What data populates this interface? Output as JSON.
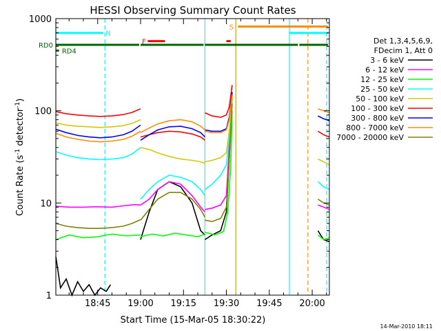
{
  "chart_data": {
    "type": "line",
    "title": "HESSI Observing Summary Count Rates",
    "xlabel": "Start Time (15-Mar-05 18:30:22)",
    "ylabel_parts": [
      "Count Rate (s",
      "-1",
      " detector",
      "-1",
      ")"
    ],
    "xlim_min": [
      30.37,
      126
    ],
    "ylim": [
      1,
      1000
    ],
    "log_y": true,
    "x_ticks": [
      {
        "v": 45,
        "label": "18:45"
      },
      {
        "v": 60,
        "label": "19:00"
      },
      {
        "v": 75,
        "label": "19:15"
      },
      {
        "v": 90,
        "label": "19:30"
      },
      {
        "v": 105,
        "label": "19:45"
      },
      {
        "v": 120,
        "label": "20:00"
      }
    ],
    "y_ticks": [
      {
        "v": 1,
        "label": "1"
      },
      {
        "v": 10,
        "label": "10"
      },
      {
        "v": 100,
        "label": "100"
      },
      {
        "v": 1000,
        "label": "1000"
      }
    ],
    "footer": "14-Mar-2010 18:11",
    "legend": {
      "header": [
        "Det 1,3,4,5,6,9,",
        "FDecim 1, Att 0"
      ],
      "position": "right"
    },
    "series": [
      {
        "name": "3 - 6 keV",
        "color": "#000000",
        "segments": [
          {
            "x": [
              30.4,
              32,
              34,
              36,
              38,
              40,
              42,
              44,
              46,
              48,
              49.5
            ],
            "y": [
              2.6,
              1.2,
              1.5,
              1.0,
              1.4,
              1.1,
              1.3,
              1.0,
              1.2,
              1.1,
              1.3
            ]
          },
          {
            "x": [
              60,
              63,
              66,
              70,
              74,
              78,
              81,
              82.5
            ],
            "y": [
              4.0,
              8,
              14,
              17,
              15,
              10,
              5,
              4.5
            ]
          },
          {
            "x": [
              82.5,
              85,
              88,
              90,
              91,
              92
            ],
            "y": [
              4.0,
              4.5,
              5,
              8,
              30,
              150
            ]
          },
          {
            "x": [
              122,
              124,
              126
            ],
            "y": [
              5,
              4,
              3.8
            ]
          }
        ]
      },
      {
        "name": "6 - 12 keV",
        "color": "#ff00ff",
        "segments": [
          {
            "x": [
              30.4,
              35,
              40,
              45,
              50,
              54,
              58,
              60
            ],
            "y": [
              9.2,
              9.0,
              9.0,
              9.1,
              9.0,
              9.3,
              9.6,
              9.5
            ]
          },
          {
            "x": [
              60,
              63,
              66,
              70,
              74,
              78,
              81,
              82.5
            ],
            "y": [
              9.5,
              11,
              14,
              17,
              16,
              12,
              9,
              8
            ]
          },
          {
            "x": [
              82.5,
              85,
              88,
              90,
              91,
              92
            ],
            "y": [
              8.5,
              8.8,
              9.5,
              12,
              40,
              150
            ]
          },
          {
            "x": [
              122,
              124,
              126
            ],
            "y": [
              9.5,
              9,
              8.5
            ]
          }
        ]
      },
      {
        "name": "12 - 25 keV",
        "color": "#00ff00",
        "segments": [
          {
            "x": [
              30.4,
              35,
              40,
              45,
              50,
              55,
              60
            ],
            "y": [
              4.0,
              4.5,
              4.2,
              4.3,
              4.6,
              4.4,
              4.5
            ]
          },
          {
            "x": [
              60,
              64,
              68,
              72,
              76,
              80,
              82.5
            ],
            "y": [
              4.3,
              4.6,
              4.4,
              4.7,
              4.5,
              4.3,
              4.6
            ]
          },
          {
            "x": [
              82.5,
              86,
              89,
              90.5,
              91.5,
              92
            ],
            "y": [
              4.8,
              4.5,
              4.9,
              8,
              25,
              100
            ]
          },
          {
            "x": [
              122,
              124,
              126
            ],
            "y": [
              4.5,
              4.0,
              4.2
            ]
          }
        ]
      },
      {
        "name": "25 - 50 keV",
        "color": "#00ffff",
        "segments": [
          {
            "x": [
              30.4,
              34,
              38,
              42,
              46,
              50,
              54,
              57,
              60
            ],
            "y": [
              36,
              33,
              31,
              30,
              29.5,
              30,
              31,
              34,
              40
            ]
          },
          {
            "x": [
              60,
              63,
              66,
              70,
              74,
              78,
              81,
              82.5
            ],
            "y": [
              11,
              14,
              17,
              20,
              19,
              17,
              14,
              12
            ]
          },
          {
            "x": [
              82.5,
              85,
              88,
              90,
              91,
              92
            ],
            "y": [
              14,
              16,
              20,
              26,
              50,
              160
            ]
          },
          {
            "x": [
              122,
              124,
              126
            ],
            "y": [
              17,
              15,
              14
            ]
          }
        ]
      },
      {
        "name": "50 - 100 keV",
        "color": "#d4c800",
        "segments": [
          {
            "x": [
              30.4,
              34,
              38,
              42,
              46,
              50,
              54,
              57,
              60
            ],
            "y": [
              74,
              70,
              68,
              67,
              66,
              67,
              69,
              73,
              80
            ]
          },
          {
            "x": [
              60,
              63,
              66,
              70,
              74,
              78,
              81,
              82.5
            ],
            "y": [
              40,
              38,
              35,
              32,
              30,
              29,
              28,
              27
            ]
          },
          {
            "x": [
              82.5,
              85,
              88,
              90,
              91,
              92
            ],
            "y": [
              28,
              29,
              31,
              35,
              60,
              130
            ]
          },
          {
            "x": [
              122,
              124,
              126
            ],
            "y": [
              30,
              28,
              26
            ]
          }
        ]
      },
      {
        "name": "100 - 300 keV",
        "color": "#ff0000",
        "segments": [
          {
            "x": [
              30.4,
              34,
              38,
              42,
              46,
              50,
              54,
              57,
              60
            ],
            "y": [
              98,
              93,
              90,
              88,
              87,
              88,
              91,
              96,
              105
            ]
          },
          {
            "x": [
              60,
              63,
              66,
              70,
              74,
              78,
              81,
              82.5
            ],
            "y": [
              52,
              55,
              58,
              60,
              59,
              56,
              52,
              48
            ]
          },
          {
            "x": [
              82.5,
              85,
              88,
              90,
              91,
              92
            ],
            "y": [
              95,
              88,
              85,
              90,
              110,
              190
            ]
          },
          {
            "x": [
              122,
              124,
              126
            ],
            "y": [
              60,
              55,
              52
            ]
          }
        ]
      },
      {
        "name": "300 - 800 keV",
        "color": "#0000ff",
        "segments": [
          {
            "x": [
              30.4,
              34,
              38,
              42,
              46,
              50,
              54,
              57,
              60
            ],
            "y": [
              63,
              58,
              54,
              52,
              51,
              52,
              55,
              60,
              70
            ]
          },
          {
            "x": [
              60,
              63,
              66,
              70,
              74,
              78,
              81,
              82.5
            ],
            "y": [
              48,
              55,
              62,
              67,
              68,
              64,
              58,
              52
            ]
          },
          {
            "x": [
              82.5,
              85,
              88,
              90,
              91,
              92
            ],
            "y": [
              62,
              60,
              60,
              64,
              85,
              160
            ]
          },
          {
            "x": [
              122,
              124,
              126
            ],
            "y": [
              88,
              82,
              78
            ]
          }
        ]
      },
      {
        "name": "800 - 7000 keV",
        "color": "#ff8c00",
        "segments": [
          {
            "x": [
              30.4,
              34,
              38,
              42,
              46,
              50,
              54,
              57,
              60
            ],
            "y": [
              57,
              52,
              49,
              47,
              46,
              47,
              49,
              53,
              60
            ]
          },
          {
            "x": [
              60,
              63,
              66,
              70,
              74,
              78,
              81,
              82.5
            ],
            "y": [
              58,
              65,
              72,
              78,
              80,
              76,
              68,
              62
            ]
          },
          {
            "x": [
              82.5,
              85,
              88,
              90,
              91,
              92
            ],
            "y": [
              60,
              58,
              58,
              62,
              80,
              150
            ]
          },
          {
            "x": [
              122,
              124,
              126
            ],
            "y": [
              105,
              100,
              95
            ]
          }
        ]
      },
      {
        "name": "7000 - 20000 keV",
        "color": "#808000",
        "segments": [
          {
            "x": [
              30.4,
              34,
              38,
              42,
              46,
              50,
              54,
              57,
              60
            ],
            "y": [
              6.0,
              5.6,
              5.4,
              5.3,
              5.3,
              5.4,
              5.6,
              6.0,
              6.6
            ]
          },
          {
            "x": [
              60,
              63,
              66,
              70,
              74,
              78,
              81,
              82.5
            ],
            "y": [
              6.5,
              8.5,
              11,
              13,
              13,
              11,
              8.5,
              7
            ]
          },
          {
            "x": [
              82.5,
              85,
              88,
              90,
              91,
              92
            ],
            "y": [
              6.5,
              6.3,
              6.8,
              9,
              30,
              120
            ]
          },
          {
            "x": [
              122,
              124,
              126
            ],
            "y": [
              11,
              10,
              9.5
            ]
          }
        ]
      }
    ],
    "flag_bars": [
      {
        "color": "#00ffff",
        "y": 700,
        "x": [
          [
            30.4,
            47.5
          ],
          [
            112,
            126
          ]
        ]
      },
      {
        "color": "#006400",
        "y": 520,
        "x": [
          [
            30.4,
            60
          ],
          [
            60,
            82.5
          ],
          [
            82.5,
            115.5
          ],
          [
            115.5,
            126
          ]
        ]
      },
      {
        "color": "#006400",
        "y": 450,
        "x": [
          [
            30.4,
            32
          ]
        ]
      },
      {
        "color": "#ff0000",
        "y": 570,
        "x": [
          [
            62.5,
            69
          ]
        ]
      },
      {
        "color": "#ff0000",
        "y": 570,
        "x": [
          [
            90,
            92
          ]
        ]
      },
      {
        "color": "#ff8c00",
        "y": 820,
        "x": [
          [
            94,
            126
          ]
        ]
      }
    ],
    "flag_labels": [
      {
        "text": "N",
        "color": "#00ffff",
        "x": 47.8,
        "y": 700
      },
      {
        "text": "RD0",
        "color": "#006400",
        "side": "left",
        "y": 520
      },
      {
        "text": "RD4",
        "color": "#006400",
        "x": 32.5,
        "y": 450
      },
      {
        "text": "F",
        "color": "#ff0000",
        "x": 60.5,
        "y": 570
      },
      {
        "text": "S",
        "color": "#ff8c00",
        "x": 91,
        "y": 820
      }
    ],
    "vlines": [
      {
        "x": 30.4,
        "color": "#00ffff",
        "dash": false
      },
      {
        "x": 47.5,
        "color": "#00ffff",
        "dash": true
      },
      {
        "x": 82.5,
        "color": "#00ffff",
        "dash": false
      },
      {
        "x": 93.3,
        "color": "#d4a017",
        "dash": false
      },
      {
        "x": 112,
        "color": "#00ffff",
        "dash": false
      },
      {
        "x": 118.5,
        "color": "#ff8c00",
        "dash": true
      },
      {
        "x": 125,
        "color": "#00ffff",
        "dash": true
      }
    ]
  }
}
